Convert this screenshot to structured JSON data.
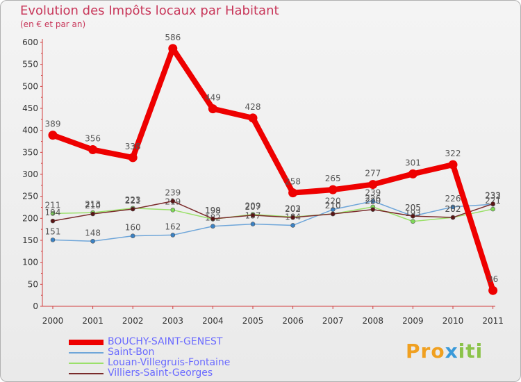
{
  "header": {
    "title": "Evolution des Impôts locaux par Habitant",
    "subtitle": "(en € et par an)"
  },
  "logo": {
    "part1": "Pro",
    "part2": "x",
    "part3": "iti"
  },
  "chart_data": {
    "type": "line",
    "title": "Evolution des Impôts locaux par Habitant",
    "subtitle": "(en € et par an)",
    "xlabel": "",
    "ylabel": "",
    "ylim": [
      0,
      600
    ],
    "yticks": [
      0,
      50,
      100,
      150,
      200,
      250,
      300,
      350,
      400,
      450,
      500,
      550,
      600
    ],
    "grid": false,
    "legend_position": "bottom-left",
    "x": [
      "2000",
      "2001",
      "2002",
      "2003",
      "2004",
      "2005",
      "2006",
      "2007",
      "2008",
      "2009",
      "2010",
      "2011"
    ],
    "series": [
      {
        "name": "BOUCHY-SAINT-GENEST",
        "color": "#ee0000",
        "marker_color": "#ee0000",
        "emphasis": true,
        "values": [
          389,
          356,
          338,
          586,
          449,
          428,
          258,
          265,
          277,
          301,
          322,
          36
        ]
      },
      {
        "name": "Saint-Bon",
        "color": "#6fa6d9",
        "marker_color": "#3b82c4",
        "emphasis": false,
        "values": [
          151,
          148,
          160,
          162,
          182,
          187,
          184,
          220,
          239,
          205,
          226,
          232
        ]
      },
      {
        "name": "Louan-Villegruis-Fontaine",
        "color": "#9be06a",
        "marker_color": "#7ed957",
        "emphasis": false,
        "values": [
          211,
          213,
          223,
          219,
          198,
          209,
          203,
          210,
          226,
          193,
          202,
          221
        ]
      },
      {
        "name": "Villiers-Saint-Georges",
        "color": "#7a2b2b",
        "marker_color": "#5a1515",
        "emphasis": false,
        "values": [
          194,
          210,
          221,
          239,
          199,
          207,
          202,
          210,
          220,
          205,
          202,
          233
        ]
      }
    ]
  }
}
